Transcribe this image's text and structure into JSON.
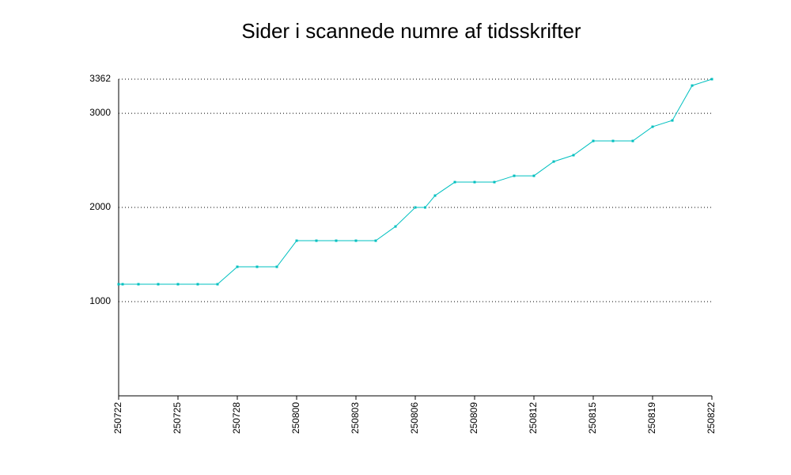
{
  "chart_data": {
    "type": "line",
    "title": "Sider i scannede numre af tidsskrifter",
    "x": [
      0,
      0.2,
      1,
      2,
      3,
      4,
      5,
      6,
      7,
      8,
      9,
      10,
      11,
      12,
      13,
      14,
      15,
      15.5,
      16,
      17,
      18,
      19,
      20,
      21,
      22,
      23,
      24,
      25,
      26,
      27,
      28,
      29,
      30
    ],
    "series": [
      {
        "color": "#00c0c0",
        "values": [
          1185,
          1185,
          1185,
          1185,
          1185,
          1185,
          1185,
          1370,
          1370,
          1370,
          1647,
          1647,
          1647,
          1647,
          1647,
          1798,
          2000,
          2000,
          2126,
          2269,
          2269,
          2269,
          2336,
          2336,
          2487,
          2555,
          2706,
          2706,
          2706,
          2857,
          2924,
          3294,
          3362
        ]
      }
    ],
    "xlim": [
      0,
      30
    ],
    "xticks": [
      {
        "value": 0,
        "label": "250722"
      },
      {
        "value": 3,
        "label": "250725"
      },
      {
        "value": 6,
        "label": "250728"
      },
      {
        "value": 9,
        "label": "250800"
      },
      {
        "value": 12,
        "label": "250803"
      },
      {
        "value": 15,
        "label": "250806"
      },
      {
        "value": 18,
        "label": "250809"
      },
      {
        "value": 21,
        "label": "250812"
      },
      {
        "value": 24,
        "label": "250815"
      },
      {
        "value": 27,
        "label": "250819"
      },
      {
        "value": 30,
        "label": "250822"
      }
    ],
    "ylim": [
      0,
      3362
    ],
    "yticks": [
      1000,
      2000,
      3000,
      3362
    ],
    "grid": true
  }
}
